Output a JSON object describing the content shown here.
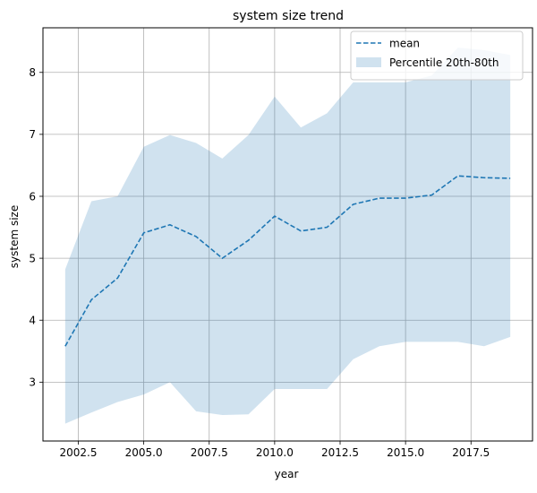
{
  "chart_data": {
    "type": "area",
    "title": "system size trend",
    "xlabel": "year",
    "ylabel": "system size",
    "xlim": [
      2001.15,
      2019.85
    ],
    "ylim": [
      2.05,
      8.72
    ],
    "grid": true,
    "legend_position": "top-right",
    "x_ticks": [
      2002.5,
      2005.0,
      2007.5,
      2010.0,
      2012.5,
      2015.0,
      2017.5
    ],
    "x_tick_labels": [
      "2002.5",
      "2005.0",
      "2007.5",
      "2010.0",
      "2012.5",
      "2015.0",
      "2017.5"
    ],
    "y_ticks": [
      3,
      4,
      5,
      6,
      7,
      8
    ],
    "y_tick_labels": [
      "3",
      "4",
      "5",
      "6",
      "7",
      "8"
    ],
    "x": [
      2002,
      2003,
      2004,
      2005,
      2006,
      2007,
      2008,
      2009,
      2010,
      2011,
      2012,
      2013,
      2014,
      2015,
      2016,
      2017,
      2018,
      2019
    ],
    "series": [
      {
        "name": "mean",
        "style": "dashed",
        "color": "#1f77b4",
        "values": [
          3.58,
          4.33,
          4.68,
          5.41,
          5.54,
          5.35,
          5.0,
          5.29,
          5.68,
          5.44,
          5.5,
          5.87,
          5.97,
          5.97,
          6.02,
          6.33,
          6.3,
          6.29
        ]
      },
      {
        "name": "Percentile 20th-80th",
        "type": "band",
        "color": "#1f77b4",
        "opacity": 0.21,
        "lower": [
          2.33,
          2.51,
          2.68,
          2.8,
          3.0,
          2.53,
          2.47,
          2.48,
          2.89,
          2.89,
          2.89,
          3.37,
          3.58,
          3.65,
          3.65,
          3.65,
          3.58,
          3.73
        ],
        "upper": [
          4.82,
          5.92,
          6.0,
          6.8,
          6.99,
          6.86,
          6.61,
          6.99,
          7.61,
          7.11,
          7.34,
          7.84,
          7.84,
          7.84,
          7.95,
          8.4,
          8.36,
          8.28
        ]
      }
    ]
  },
  "colors": {
    "line": "#1f77b4",
    "band": "#1f77b4",
    "grid": "#b0b0b0",
    "axes": "#000000"
  }
}
